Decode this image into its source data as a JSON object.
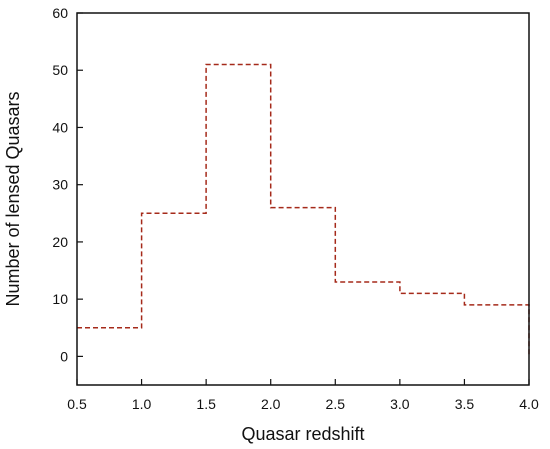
{
  "chart_data": {
    "type": "line",
    "step": true,
    "title": "",
    "xlabel": "Quasar redshift",
    "ylabel": "Number of lensed Quasars",
    "xlim": [
      0.5,
      4.0
    ],
    "ylim": [
      -5,
      60
    ],
    "xticks": [
      "0.5",
      "1.0",
      "1.5",
      "2.0",
      "2.5",
      "3.0",
      "3.5",
      "4.0"
    ],
    "yticks": [
      "0",
      "10",
      "20",
      "30",
      "40",
      "50",
      "60"
    ],
    "series": [
      {
        "bins": [
          [
            0.5,
            1.0,
            5
          ],
          [
            1.0,
            1.5,
            25
          ],
          [
            1.5,
            2.0,
            51
          ],
          [
            2.0,
            2.5,
            26
          ],
          [
            2.5,
            3.0,
            13
          ],
          [
            3.0,
            3.5,
            11
          ],
          [
            3.5,
            4.0,
            9
          ]
        ],
        "color": "#a52a1a",
        "line_style": "dashed"
      }
    ],
    "grid": false,
    "legend": "none"
  }
}
